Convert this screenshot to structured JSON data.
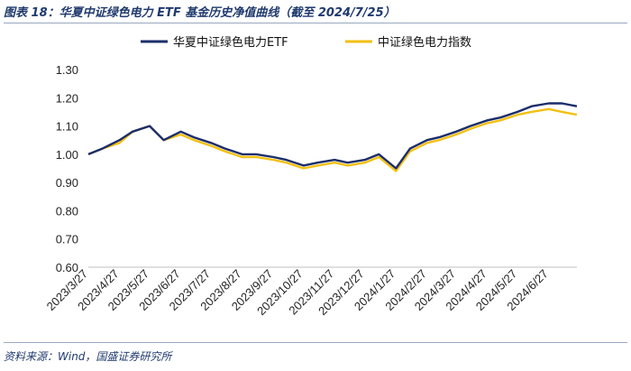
{
  "header": {
    "title": "图表 18：华夏中证绿色电力 ETF 基金历史净值曲线（截至 2024/7/25）"
  },
  "footer": {
    "source": "资料来源：Wind，国盛证券研究所"
  },
  "colors": {
    "etf": "#1b2d6b",
    "index": "#f2c014",
    "axis": "#bfbfbf"
  },
  "chart_data": {
    "type": "line",
    "title": "",
    "xlabel": "",
    "ylabel": "",
    "ylim": [
      0.6,
      1.3
    ],
    "yticks": [
      "0.60",
      "0.70",
      "0.80",
      "0.90",
      "1.00",
      "1.10",
      "1.20",
      "1.30"
    ],
    "xticks": [
      "2023/3/27",
      "2023/4/27",
      "2023/5/27",
      "2023/6/27",
      "2023/7/27",
      "2023/8/27",
      "2023/9/27",
      "2023/10/27",
      "2023/11/27",
      "2023/12/27",
      "2024/1/27",
      "2024/2/27",
      "2024/3/27",
      "2024/4/27",
      "2024/5/27",
      "2024/6/27"
    ],
    "legend_position": "top",
    "series": [
      {
        "name": "华夏中证绿色电力ETF",
        "x": [
          "2023/3/27",
          "2023/4/10",
          "2023/4/27",
          "2023/5/10",
          "2023/5/27",
          "2023/6/10",
          "2023/6/27",
          "2023/7/10",
          "2023/7/27",
          "2023/8/10",
          "2023/8/27",
          "2023/9/10",
          "2023/9/27",
          "2023/10/10",
          "2023/10/27",
          "2023/11/10",
          "2023/11/27",
          "2023/12/10",
          "2023/12/27",
          "2024/1/10",
          "2024/1/27",
          "2024/2/10",
          "2024/2/27",
          "2024/3/10",
          "2024/3/27",
          "2024/4/10",
          "2024/4/27",
          "2024/5/10",
          "2024/5/27",
          "2024/6/10",
          "2024/6/27",
          "2024/7/10",
          "2024/7/25"
        ],
        "values": [
          1.0,
          1.02,
          1.05,
          1.08,
          1.1,
          1.05,
          1.08,
          1.06,
          1.04,
          1.02,
          1.0,
          1.0,
          0.99,
          0.98,
          0.96,
          0.97,
          0.98,
          0.97,
          0.98,
          1.0,
          0.95,
          1.02,
          1.05,
          1.06,
          1.08,
          1.1,
          1.12,
          1.13,
          1.15,
          1.17,
          1.18,
          1.18,
          1.17
        ]
      },
      {
        "name": "中证绿色电力指数",
        "x": [
          "2023/3/27",
          "2023/4/10",
          "2023/4/27",
          "2023/5/10",
          "2023/5/27",
          "2023/6/10",
          "2023/6/27",
          "2023/7/10",
          "2023/7/27",
          "2023/8/10",
          "2023/8/27",
          "2023/9/10",
          "2023/9/27",
          "2023/10/10",
          "2023/10/27",
          "2023/11/10",
          "2023/11/27",
          "2023/12/10",
          "2023/12/27",
          "2024/1/10",
          "2024/1/27",
          "2024/2/10",
          "2024/2/27",
          "2024/3/10",
          "2024/3/27",
          "2024/4/10",
          "2024/4/27",
          "2024/5/10",
          "2024/5/27",
          "2024/6/10",
          "2024/6/27",
          "2024/7/10",
          "2024/7/25"
        ],
        "values": [
          1.0,
          1.02,
          1.04,
          1.08,
          1.1,
          1.05,
          1.07,
          1.05,
          1.03,
          1.01,
          0.99,
          0.99,
          0.98,
          0.97,
          0.95,
          0.96,
          0.97,
          0.96,
          0.97,
          0.99,
          0.94,
          1.01,
          1.04,
          1.05,
          1.07,
          1.09,
          1.11,
          1.12,
          1.14,
          1.15,
          1.16,
          1.15,
          1.14
        ]
      }
    ]
  }
}
